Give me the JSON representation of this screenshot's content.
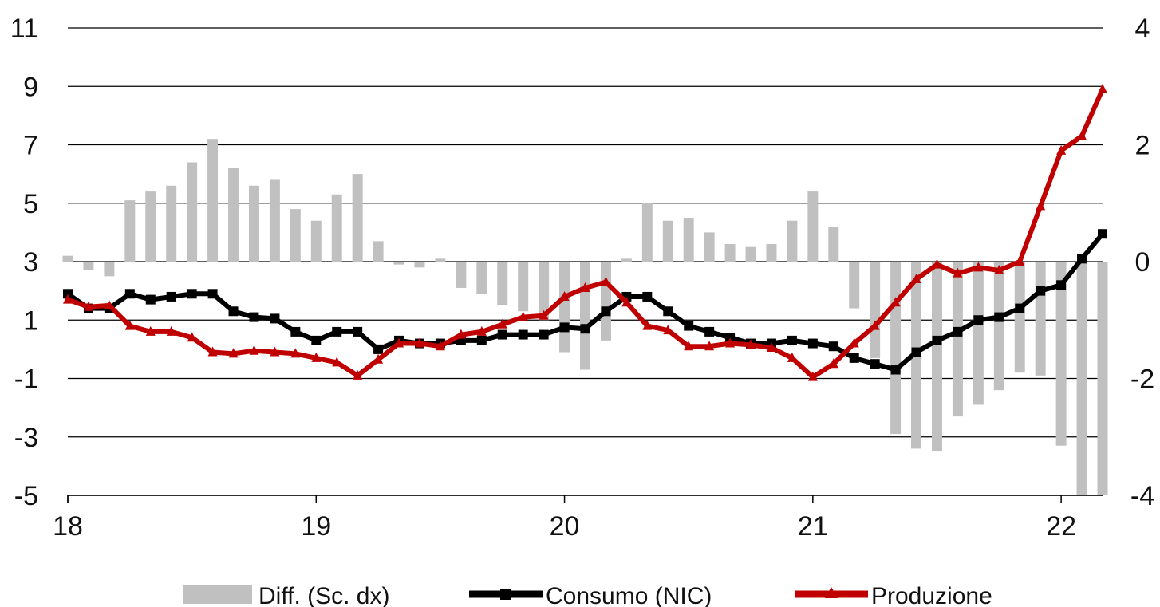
{
  "chart_data": {
    "type": "bar",
    "x_tick_labels": [
      "18",
      "19",
      "20",
      "21",
      "22"
    ],
    "x": [
      "2018-01",
      "2018-02",
      "2018-03",
      "2018-04",
      "2018-05",
      "2018-06",
      "2018-07",
      "2018-08",
      "2018-09",
      "2018-10",
      "2018-11",
      "2018-12",
      "2019-01",
      "2019-02",
      "2019-03",
      "2019-04",
      "2019-05",
      "2019-06",
      "2019-07",
      "2019-08",
      "2019-09",
      "2019-10",
      "2019-11",
      "2019-12",
      "2020-01",
      "2020-02",
      "2020-03",
      "2020-04",
      "2020-05",
      "2020-06",
      "2020-07",
      "2020-08",
      "2020-09",
      "2020-10",
      "2020-11",
      "2020-12",
      "2021-01",
      "2021-02",
      "2021-03",
      "2021-04",
      "2021-05",
      "2021-06",
      "2021-07",
      "2021-08",
      "2021-09",
      "2021-10",
      "2021-11",
      "2021-12",
      "2022-01",
      "2022-02",
      "2022-03"
    ],
    "y_left": {
      "ticks": [
        11,
        9,
        7,
        5,
        3,
        1,
        -1,
        -3,
        -5
      ],
      "ylim": [
        -5,
        11
      ]
    },
    "y_right": {
      "ticks": [
        4,
        2,
        0,
        -2,
        -4
      ],
      "ylim": [
        -4,
        4
      ]
    },
    "series": [
      {
        "name": "Diff. (Sc. dx)",
        "type": "bar",
        "axis": "right",
        "color": "#c0c0c0",
        "values": [
          0.1,
          -0.15,
          -0.25,
          1.05,
          1.2,
          1.3,
          1.7,
          2.1,
          1.6,
          1.3,
          1.4,
          0.9,
          0.7,
          1.15,
          1.5,
          0.35,
          -0.05,
          -0.1,
          0.05,
          -0.45,
          -0.55,
          -0.75,
          -0.85,
          -1.0,
          -1.55,
          -1.85,
          -1.35,
          0.05,
          1.0,
          0.7,
          0.75,
          0.5,
          0.3,
          0.25,
          0.3,
          0.7,
          1.2,
          0.6,
          -0.8,
          -1.65,
          -2.95,
          -3.2,
          -3.25,
          -2.65,
          -2.45,
          -2.2,
          -1.9,
          -1.95,
          -3.15,
          -4.0,
          -4.0
        ]
      },
      {
        "name": "Consumo (NIC)",
        "type": "line",
        "axis": "left",
        "color": "#000000",
        "marker": "square",
        "values": [
          1.9,
          1.4,
          1.4,
          1.9,
          1.7,
          1.8,
          1.9,
          1.9,
          1.3,
          1.1,
          1.05,
          0.6,
          0.3,
          0.6,
          0.6,
          0.0,
          0.3,
          0.2,
          0.2,
          0.3,
          0.3,
          0.5,
          0.5,
          0.5,
          0.75,
          0.7,
          1.3,
          1.8,
          1.8,
          1.3,
          0.8,
          0.6,
          0.4,
          0.2,
          0.2,
          0.3,
          0.2,
          0.1,
          -0.3,
          -0.5,
          -0.7,
          -0.1,
          0.3,
          0.6,
          1.0,
          1.1,
          1.4,
          2.0,
          2.2,
          3.1,
          3.95
        ]
      },
      {
        "name": "Produzione",
        "type": "line",
        "axis": "left",
        "color": "#c00000",
        "marker": "triangle",
        "values": [
          1.7,
          1.45,
          1.5,
          0.8,
          0.6,
          0.6,
          0.4,
          -0.1,
          -0.15,
          -0.05,
          -0.1,
          -0.15,
          -0.3,
          -0.45,
          -0.9,
          -0.35,
          0.2,
          0.2,
          0.1,
          0.5,
          0.6,
          0.85,
          1.1,
          1.15,
          1.8,
          2.1,
          2.3,
          1.6,
          0.8,
          0.65,
          0.1,
          0.1,
          0.2,
          0.15,
          0.05,
          -0.3,
          -0.95,
          -0.5,
          0.2,
          0.8,
          1.6,
          2.4,
          2.9,
          2.6,
          2.8,
          2.7,
          3.0,
          4.9,
          6.8,
          7.3,
          8.9
        ]
      }
    ],
    "grid": true,
    "legend_position": "bottom"
  }
}
